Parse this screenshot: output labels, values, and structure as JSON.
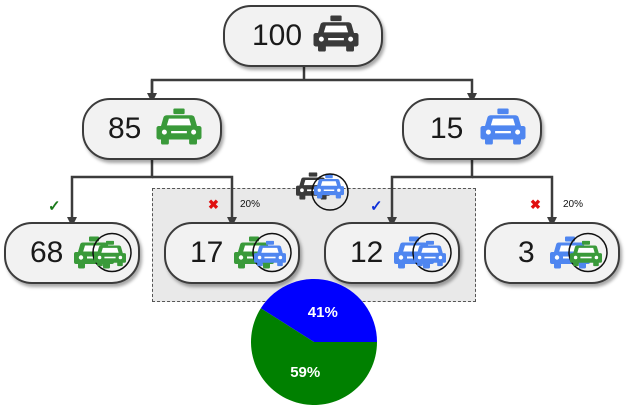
{
  "colors": {
    "dark_taxi": "#3a3a3a",
    "green_taxi": "#3a9a3a",
    "blue_taxi": "#4f86f0",
    "pie_blue": "#0000ff",
    "pie_green": "#008000",
    "check_green": "#1b7a1b",
    "check_blue": "#1030d8",
    "cross_red": "#e01010"
  },
  "root": {
    "value": "100",
    "icon": "dark-taxi-icon"
  },
  "level1": [
    {
      "value": "85",
      "icon": "green-taxi-icon"
    },
    {
      "value": "15",
      "icon": "blue-taxi-icon"
    }
  ],
  "leaves": [
    {
      "value": "68",
      "icon": "green-taxi-witness-icon",
      "mark": "✓",
      "pct": ""
    },
    {
      "value": "17",
      "icon": "green-blue-taxi-witness-icon",
      "mark": "✖",
      "pct": "20%"
    },
    {
      "value": "12",
      "icon": "blue-taxi-witness-icon",
      "mark": "✓",
      "pct": ""
    },
    {
      "value": "3",
      "icon": "blue-green-taxi-witness-icon",
      "mark": "✖",
      "pct": "20%"
    }
  ],
  "group_icon": "dark-blue-taxi-witness-icon",
  "chart_data": {
    "type": "pie",
    "title": "",
    "labels": [
      "Blue",
      "Green"
    ],
    "values": [
      41,
      59
    ],
    "value_labels": [
      "41%",
      "59%"
    ],
    "colors": [
      "#0000ff",
      "#008000"
    ]
  }
}
